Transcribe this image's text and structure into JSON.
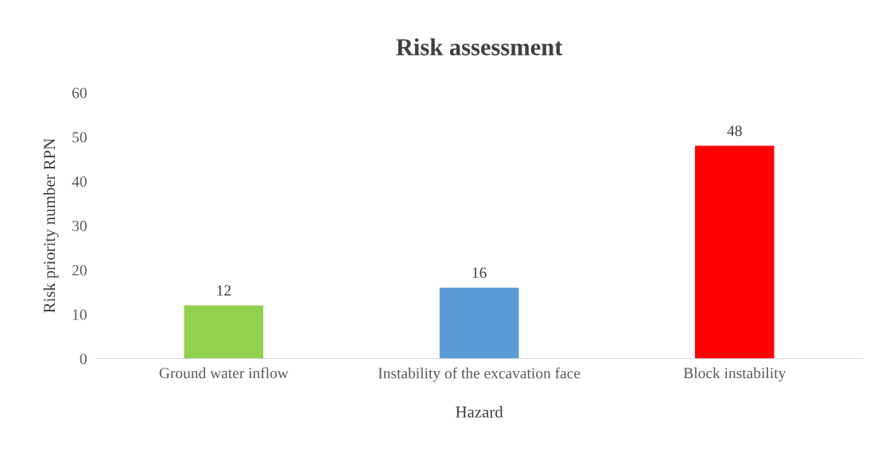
{
  "chart_data": {
    "type": "bar",
    "title": "Risk assessment",
    "xlabel": "Hazard",
    "ylabel": "Risk priority number RPN",
    "categories": [
      "Ground water inflow",
      "Instability of the excavation face",
      "Block instability"
    ],
    "values": [
      12,
      16,
      48
    ],
    "colors": [
      "#92d050",
      "#5b9bd5",
      "#ff0000"
    ],
    "ylim": [
      0,
      60
    ],
    "yticks": [
      0,
      10,
      20,
      30,
      40,
      50,
      60
    ],
    "data_labels": true,
    "grid": false,
    "legend": false
  }
}
